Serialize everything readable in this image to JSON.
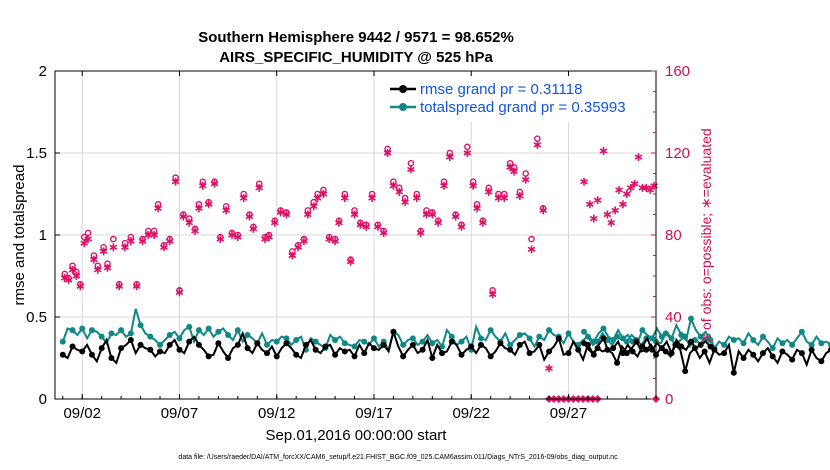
{
  "chart_data": {
    "type": "line",
    "title_line1": "Southern Hemisphere 9442 / 9571 = 98.652%",
    "title_line2": "AIRS_SPECIFIC_HUMIDITY @ 525 hPa",
    "xlabel": "Sep.01,2016 00:00:00 start",
    "ylabel_left": "rmse and totalspread",
    "ylabel_right": "# of obs: o=possible; ∗=evaluated",
    "ylim_left": [
      0,
      2
    ],
    "ylim_right": [
      0,
      160
    ],
    "xlim_days": [
      0.6,
      31.5
    ],
    "left_ticks": [
      "0",
      "0.5",
      "1",
      "1.5",
      "2"
    ],
    "left_tick_values": [
      0,
      0.5,
      1,
      1.5,
      2
    ],
    "right_ticks": [
      "0",
      "40",
      "80",
      "120",
      "160"
    ],
    "right_tick_values": [
      0,
      40,
      80,
      120,
      160
    ],
    "x_ticks": [
      "09/02",
      "09/07",
      "09/12",
      "09/17",
      "09/22",
      "09/27"
    ],
    "x_tick_days": [
      2,
      7,
      12,
      17,
      22,
      27
    ],
    "footnote": "data file: /Users/raeder/DAI/ATM_forcXX/CAM6_setup/f.e21.FHIST_BGC.f09_025.CAM6assim.011/Diags_NTrS_2016-09/obs_diag_output.nc",
    "colors": {
      "rmse": "#000000",
      "spread": "#118888",
      "obs": "#dd1166",
      "legend_text": "#1155dd",
      "grid": "#d8d8d8"
    },
    "series": [
      {
        "name": "rmse",
        "legend": "rmse grand pr = 0.31118",
        "segments": [
          {
            "x0": 1.0,
            "dx": 0.25,
            "values": [
              0.27,
              0.25,
              0.32,
              0.3,
              0.29,
              0.33,
              0.27,
              0.23,
              0.31,
              0.36,
              0.25,
              0.22,
              0.31,
              0.33,
              0.36,
              0.28,
              0.33,
              0.31,
              0.3,
              0.26,
              0.29,
              0.28,
              0.33,
              0.36,
              0.3,
              0.28,
              0.35,
              0.38,
              0.33,
              0.3,
              0.26,
              0.27,
              0.34,
              0.29,
              0.25,
              0.31,
              0.33,
              0.4,
              0.31,
              0.28,
              0.34,
              0.3,
              0.28,
              0.32,
              0.26,
              0.31,
              0.34,
              0.31,
              0.27,
              0.25,
              0.33,
              0.36,
              0.3,
              0.28,
              0.32,
              0.33,
              0.27,
              0.31,
              0.29,
              0.3,
              0.26,
              0.33,
              0.28,
              0.34,
              0.31,
              0.3,
              0.33,
              0.29,
              0.41,
              0.32,
              0.26,
              0.3,
              0.33,
              0.28,
              0.3,
              0.36,
              0.25,
              0.33,
              0.28,
              0.29,
              0.35,
              0.33,
              0.27,
              0.3,
              0.32,
              0.28,
              0.33,
              0.31,
              0.26,
              0.29,
              0.34,
              0.31,
              0.3,
              0.27,
              0.33,
              0.35,
              0.28,
              0.29,
              0.33,
              0.24,
              0.29,
              0.32,
              0.37,
              0.27,
              0.28,
              0.35,
              0.3,
              0.24,
              0.33,
              0.28,
              0.31,
              0.29,
              0.3,
              0.28,
              0.22,
              0.32,
              0.28,
              0.31,
              0.35,
              0.29,
              0.3,
              0.33,
              0.27,
              0.31,
              0.29,
              0.26,
              0.33,
              0.3,
              0.17,
              0.28,
              0.31,
              0.25,
              0.29,
              0.22,
              0.3,
              0.27,
              0.28,
              0.33,
              0.16,
              0.29,
              0.25,
              0.3,
              0.27,
              0.23,
              0.28,
              0.31,
              0.26,
              0.22,
              0.29,
              0.27,
              0.24,
              0.3,
              0.28,
              0.21,
              0.3,
              0.25,
              0.23,
              0.28,
              0.3,
              0.24,
              0.3,
              0.27,
              0.22
            ]
          },
          {
            "x0": 27.8,
            "dx": 0.25,
            "values": [
              0.34,
              0.3,
              0.27,
              0.33,
              0.37,
              0.29,
              0.31,
              0.35,
              0.28,
              0.33,
              0.29,
              0.26,
              0.32,
              0.37,
              0.3,
              0.34,
              0.31,
              0.35,
              0.28,
              0.36,
              0.32,
              0.3,
              0.35,
              0.31,
              0.33,
              0.35,
              0.32
            ]
          }
        ]
      },
      {
        "name": "totalspread",
        "legend": "totalspread grand pr = 0.35993",
        "segments": [
          {
            "x0": 1.0,
            "dx": 0.25,
            "values": [
              0.35,
              0.43,
              0.42,
              0.39,
              0.43,
              0.37,
              0.42,
              0.41,
              0.38,
              0.34,
              0.4,
              0.39,
              0.42,
              0.38,
              0.4,
              0.55,
              0.45,
              0.4,
              0.38,
              0.36,
              0.33,
              0.36,
              0.39,
              0.41,
              0.37,
              0.42,
              0.44,
              0.35,
              0.42,
              0.39,
              0.43,
              0.38,
              0.41,
              0.43,
              0.39,
              0.36,
              0.42,
              0.35,
              0.39,
              0.37,
              0.34,
              0.4,
              0.33,
              0.36,
              0.35,
              0.38,
              0.37,
              0.33,
              0.36,
              0.38,
              0.3,
              0.37,
              0.35,
              0.33,
              0.31,
              0.39,
              0.36,
              0.38,
              0.34,
              0.33,
              0.32,
              0.36,
              0.35,
              0.33,
              0.37,
              0.32,
              0.35,
              0.3,
              0.41,
              0.39,
              0.33,
              0.36,
              0.37,
              0.33,
              0.35,
              0.39,
              0.34,
              0.36,
              0.32,
              0.42,
              0.38,
              0.33,
              0.35,
              0.38,
              0.3,
              0.44,
              0.37,
              0.36,
              0.42,
              0.38,
              0.35,
              0.4,
              0.33,
              0.36,
              0.39,
              0.4,
              0.37,
              0.32,
              0.38,
              0.36,
              0.42,
              0.39,
              0.38,
              0.34,
              0.4,
              0.35,
              0.33,
              0.36,
              0.38,
              0.33,
              0.35,
              0.4,
              0.36,
              0.33,
              0.38,
              0.36,
              0.35,
              0.39,
              0.36,
              0.33,
              0.37,
              0.38,
              0.35,
              0.34,
              0.4,
              0.37,
              0.33,
              0.36,
              0.38,
              0.32,
              0.36,
              0.34,
              0.36,
              0.39,
              0.31,
              0.35,
              0.33,
              0.38,
              0.36,
              0.37,
              0.34,
              0.4,
              0.36,
              0.33,
              0.38,
              0.35,
              0.31,
              0.37,
              0.34,
              0.36,
              0.33,
              0.37,
              0.41,
              0.35,
              0.33,
              0.38,
              0.34,
              0.35,
              0.33,
              0.37,
              0.35,
              0.33,
              0.33
            ]
          },
          {
            "x0": 27.8,
            "dx": 0.25,
            "values": [
              0.41,
              0.38,
              0.35,
              0.4,
              0.43,
              0.38,
              0.36,
              0.42,
              0.37,
              0.39,
              0.35,
              0.34,
              0.42,
              0.39,
              0.37,
              0.43,
              0.38,
              0.41,
              0.37,
              0.45,
              0.39,
              0.36,
              0.49,
              0.42,
              0.38,
              0.41,
              0.36
            ]
          }
        ]
      }
    ],
    "obs_possible": [
      [
        1.1,
        61
      ],
      [
        1.3,
        59
      ],
      [
        1.5,
        65
      ],
      [
        1.7,
        62
      ],
      [
        1.9,
        56
      ],
      [
        2.1,
        79
      ],
      [
        2.3,
        81
      ],
      [
        2.6,
        70
      ],
      [
        2.8,
        65
      ],
      [
        3.1,
        74
      ],
      [
        3.3,
        66
      ],
      [
        3.6,
        78
      ],
      [
        3.9,
        56
      ],
      [
        4.2,
        76
      ],
      [
        4.5,
        79
      ],
      [
        4.8,
        56
      ],
      [
        5.1,
        78
      ],
      [
        5.4,
        82
      ],
      [
        5.7,
        82
      ],
      [
        5.9,
        95
      ],
      [
        6.2,
        75
      ],
      [
        6.5,
        78
      ],
      [
        6.8,
        108
      ],
      [
        7.0,
        53
      ],
      [
        7.2,
        90
      ],
      [
        7.5,
        88
      ],
      [
        7.8,
        83
      ],
      [
        8.0,
        95
      ],
      [
        8.2,
        106
      ],
      [
        8.5,
        96
      ],
      [
        8.8,
        106
      ],
      [
        9.1,
        79
      ],
      [
        9.4,
        94
      ],
      [
        9.7,
        81
      ],
      [
        10.0,
        80
      ],
      [
        10.3,
        100
      ],
      [
        10.6,
        90
      ],
      [
        10.8,
        84
      ],
      [
        11.1,
        105
      ],
      [
        11.4,
        79
      ],
      [
        11.6,
        80
      ],
      [
        11.9,
        87
      ],
      [
        12.2,
        92
      ],
      [
        12.5,
        91
      ],
      [
        12.8,
        72
      ],
      [
        13.1,
        75
      ],
      [
        13.4,
        78
      ],
      [
        13.6,
        92
      ],
      [
        13.9,
        96
      ],
      [
        14.1,
        100
      ],
      [
        14.4,
        102
      ],
      [
        14.7,
        79
      ],
      [
        15.0,
        78
      ],
      [
        15.2,
        87
      ],
      [
        15.5,
        100
      ],
      [
        15.8,
        68
      ],
      [
        16.0,
        92
      ],
      [
        16.3,
        86
      ],
      [
        16.6,
        85
      ],
      [
        16.9,
        100
      ],
      [
        17.2,
        85
      ],
      [
        17.5,
        82
      ],
      [
        17.7,
        122
      ],
      [
        18.0,
        106
      ],
      [
        18.3,
        103
      ],
      [
        18.6,
        98
      ],
      [
        18.9,
        115
      ],
      [
        19.2,
        100
      ],
      [
        19.4,
        82
      ],
      [
        19.7,
        92
      ],
      [
        20.0,
        91
      ],
      [
        20.3,
        87
      ],
      [
        20.6,
        106
      ],
      [
        20.9,
        120
      ],
      [
        21.2,
        90
      ],
      [
        21.5,
        85
      ],
      [
        21.8,
        123
      ],
      [
        22.1,
        106
      ],
      [
        22.3,
        95
      ],
      [
        22.6,
        87
      ],
      [
        22.9,
        103
      ],
      [
        23.1,
        53
      ],
      [
        23.4,
        100
      ],
      [
        23.7,
        100
      ],
      [
        24.0,
        115
      ],
      [
        24.2,
        113
      ],
      [
        24.5,
        101
      ],
      [
        24.8,
        110
      ],
      [
        25.1,
        78
      ],
      [
        25.4,
        127
      ],
      [
        25.7,
        93
      ]
    ],
    "obs_evaluated": [
      [
        1.1,
        59
      ],
      [
        1.3,
        58
      ],
      [
        1.5,
        63
      ],
      [
        1.7,
        60
      ],
      [
        1.9,
        55
      ],
      [
        2.1,
        76
      ],
      [
        2.3,
        78
      ],
      [
        2.6,
        68
      ],
      [
        2.8,
        63
      ],
      [
        3.1,
        72
      ],
      [
        3.3,
        64
      ],
      [
        3.6,
        74
      ],
      [
        3.9,
        55
      ],
      [
        4.2,
        74
      ],
      [
        4.5,
        77
      ],
      [
        4.8,
        55
      ],
      [
        5.1,
        77
      ],
      [
        5.4,
        80
      ],
      [
        5.7,
        80
      ],
      [
        5.9,
        93
      ],
      [
        6.2,
        74
      ],
      [
        6.5,
        77
      ],
      [
        6.8,
        106
      ],
      [
        7.0,
        52
      ],
      [
        7.2,
        89
      ],
      [
        7.5,
        86
      ],
      [
        7.8,
        82
      ],
      [
        8.0,
        93
      ],
      [
        8.2,
        104
      ],
      [
        8.5,
        95
      ],
      [
        8.8,
        105
      ],
      [
        9.1,
        78
      ],
      [
        9.4,
        92
      ],
      [
        9.7,
        80
      ],
      [
        10.0,
        79
      ],
      [
        10.3,
        98
      ],
      [
        10.6,
        89
      ],
      [
        10.8,
        83
      ],
      [
        11.1,
        103
      ],
      [
        11.4,
        78
      ],
      [
        11.6,
        79
      ],
      [
        11.9,
        86
      ],
      [
        12.2,
        91
      ],
      [
        12.5,
        90
      ],
      [
        12.8,
        70
      ],
      [
        13.1,
        74
      ],
      [
        13.4,
        77
      ],
      [
        13.6,
        90
      ],
      [
        13.9,
        94
      ],
      [
        14.1,
        98
      ],
      [
        14.4,
        100
      ],
      [
        14.7,
        78
      ],
      [
        15.0,
        77
      ],
      [
        15.2,
        86
      ],
      [
        15.5,
        98
      ],
      [
        15.8,
        67
      ],
      [
        16.0,
        90
      ],
      [
        16.3,
        85
      ],
      [
        16.6,
        84
      ],
      [
        16.9,
        98
      ],
      [
        17.2,
        84
      ],
      [
        17.5,
        81
      ],
      [
        17.7,
        120
      ],
      [
        18.0,
        104
      ],
      [
        18.3,
        101
      ],
      [
        18.6,
        96
      ],
      [
        18.9,
        112
      ],
      [
        19.2,
        98
      ],
      [
        19.4,
        81
      ],
      [
        19.7,
        90
      ],
      [
        20.0,
        90
      ],
      [
        20.3,
        86
      ],
      [
        20.6,
        104
      ],
      [
        20.9,
        118
      ],
      [
        21.2,
        89
      ],
      [
        21.5,
        84
      ],
      [
        21.8,
        120
      ],
      [
        22.1,
        104
      ],
      [
        22.3,
        93
      ],
      [
        22.6,
        86
      ],
      [
        22.9,
        101
      ],
      [
        23.1,
        51
      ],
      [
        23.4,
        98
      ],
      [
        23.7,
        98
      ],
      [
        24.0,
        113
      ],
      [
        24.2,
        111
      ],
      [
        24.5,
        99
      ],
      [
        24.8,
        107
      ],
      [
        25.1,
        73
      ],
      [
        25.4,
        124
      ],
      [
        25.7,
        92
      ],
      [
        26.0,
        15
      ],
      [
        27.8,
        106
      ],
      [
        28.1,
        95
      ],
      [
        28.3,
        88
      ],
      [
        28.5,
        97
      ],
      [
        28.8,
        121
      ],
      [
        29.0,
        90
      ],
      [
        29.2,
        86
      ],
      [
        29.4,
        92
      ],
      [
        29.6,
        102
      ],
      [
        29.8,
        95
      ],
      [
        30.0,
        100
      ],
      [
        30.2,
        103
      ],
      [
        30.4,
        105
      ],
      [
        30.6,
        118
      ],
      [
        30.8,
        103
      ],
      [
        31.0,
        103
      ],
      [
        31.2,
        102
      ],
      [
        31.4,
        104
      ]
    ],
    "obs_zero_days": [
      26.0,
      26.25,
      26.5,
      26.75,
      27.0,
      27.25,
      27.5,
      27.75,
      28.0,
      28.25,
      28.5,
      31.5
    ]
  }
}
